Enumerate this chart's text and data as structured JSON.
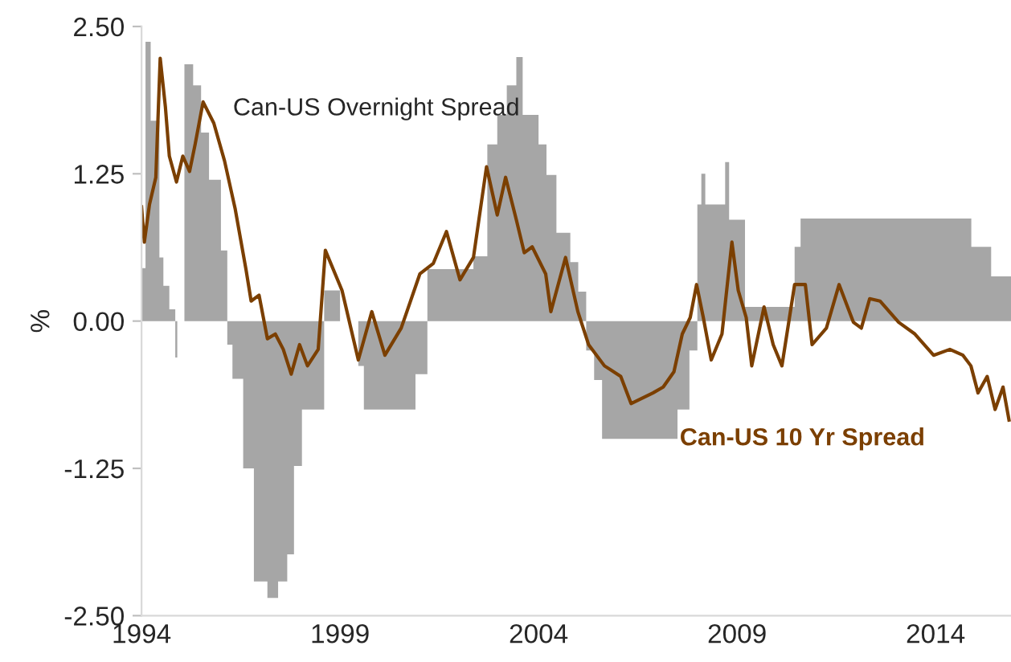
{
  "chart_data": {
    "type": "line",
    "ylabel": "%",
    "xlim": [
      1994,
      2015.9
    ],
    "xticks": [
      1994,
      1999,
      2004,
      2009,
      2014
    ],
    "ylim": [
      -2.5,
      2.5
    ],
    "yticks": [
      {
        "value": 2.5,
        "label": "2.50"
      },
      {
        "value": 1.25,
        "label": "1.25"
      },
      {
        "value": 0,
        "label": "0.00"
      },
      {
        "value": -1.25,
        "label": "-1.25"
      },
      {
        "value": -2.5,
        "label": "-2.50"
      }
    ],
    "grid": false,
    "legend": false,
    "series": [
      {
        "name": "Can-US Overnight Spread",
        "type": "area",
        "color": "#a6a6a6",
        "x": [
          1994.0,
          1994.1,
          1994.23,
          1994.45,
          1994.55,
          1994.7,
          1994.85,
          1994.9,
          1995.08,
          1995.3,
          1995.5,
          1995.7,
          1996.0,
          1996.16,
          1996.29,
          1996.56,
          1996.83,
          1997.17,
          1997.44,
          1997.67,
          1997.84,
          1998.04,
          1998.6,
          1999.0,
          1999.46,
          1999.6,
          2000.9,
          2001.2,
          2002.36,
          2002.71,
          2002.96,
          2003.2,
          2003.44,
          2003.6,
          2004.0,
          2004.2,
          2004.45,
          2004.8,
          2005.0,
          2005.2,
          2005.4,
          2005.6,
          2007.5,
          2007.8,
          2008.0,
          2008.1,
          2008.2,
          2008.7,
          2008.8,
          2009.2,
          2010.45,
          2010.6,
          2014.9,
          2015.4,
          2015.9
        ],
        "values": [
          0.45,
          2.37,
          1.7,
          0.54,
          0.3,
          0.1,
          -0.31,
          0.0,
          2.18,
          2.0,
          1.6,
          1.2,
          0.6,
          -0.2,
          -0.49,
          -1.25,
          -2.21,
          -2.35,
          -2.21,
          -1.98,
          -1.23,
          -0.75,
          0.26,
          0.0,
          -0.38,
          -0.75,
          -0.45,
          0.44,
          0.55,
          1.5,
          1.75,
          2.0,
          2.24,
          1.75,
          1.5,
          1.24,
          0.75,
          0.5,
          0.25,
          -0.25,
          -0.5,
          -1.0,
          -0.75,
          -0.25,
          0.99,
          1.25,
          0.99,
          1.35,
          0.86,
          0.12,
          0.63,
          0.87,
          0.63,
          0.38,
          0.38
        ]
      },
      {
        "name": "Can-US 10 Yr Spread",
        "color": "#7b3f00",
        "x": [
          1994.0,
          1994.07,
          1994.2,
          1994.36,
          1994.47,
          1994.6,
          1994.7,
          1994.88,
          1995.04,
          1995.21,
          1995.35,
          1995.55,
          1995.82,
          1996.09,
          1996.36,
          1996.63,
          1996.76,
          1996.96,
          1997.17,
          1997.37,
          1997.57,
          1997.77,
          1997.98,
          1998.18,
          1998.45,
          1998.63,
          1999.05,
          1999.46,
          1999.8,
          2000.13,
          2000.54,
          2001.01,
          2001.35,
          2001.68,
          2002.02,
          2002.36,
          2002.69,
          2002.96,
          2003.17,
          2003.44,
          2003.64,
          2003.84,
          2004.18,
          2004.31,
          2004.68,
          2004.99,
          2005.26,
          2005.66,
          2006.07,
          2006.33,
          2006.88,
          2007.14,
          2007.41,
          2007.62,
          2007.82,
          2007.98,
          2008.15,
          2008.35,
          2008.62,
          2008.87,
          2009.03,
          2009.23,
          2009.37,
          2009.68,
          2009.91,
          2010.13,
          2010.45,
          2010.72,
          2010.89,
          2011.25,
          2011.57,
          2011.93,
          2012.13,
          2012.34,
          2012.6,
          2013.07,
          2013.48,
          2013.95,
          2014.36,
          2014.69,
          2014.89,
          2015.07,
          2015.3,
          2015.5,
          2015.7,
          2015.85
        ],
        "values": [
          0.97,
          0.67,
          0.99,
          1.22,
          2.23,
          1.82,
          1.4,
          1.18,
          1.4,
          1.27,
          1.5,
          1.86,
          1.68,
          1.36,
          0.95,
          0.44,
          0.17,
          0.22,
          -0.15,
          -0.11,
          -0.24,
          -0.45,
          -0.2,
          -0.38,
          -0.24,
          0.6,
          0.26,
          -0.33,
          0.08,
          -0.29,
          -0.06,
          0.4,
          0.49,
          0.76,
          0.35,
          0.54,
          1.31,
          0.9,
          1.22,
          0.86,
          0.58,
          0.63,
          0.4,
          0.08,
          0.54,
          0.08,
          -0.2,
          -0.38,
          -0.47,
          -0.7,
          -0.61,
          -0.56,
          -0.43,
          -0.11,
          0.03,
          0.31,
          0.03,
          -0.33,
          -0.11,
          0.67,
          0.26,
          0.03,
          -0.38,
          0.12,
          -0.2,
          -0.38,
          0.31,
          0.31,
          -0.2,
          -0.06,
          0.31,
          -0.01,
          -0.06,
          0.19,
          0.17,
          -0.01,
          -0.11,
          -0.29,
          -0.24,
          -0.29,
          -0.38,
          -0.61,
          -0.47,
          -0.75,
          -0.56,
          -0.84
        ]
      }
    ]
  }
}
